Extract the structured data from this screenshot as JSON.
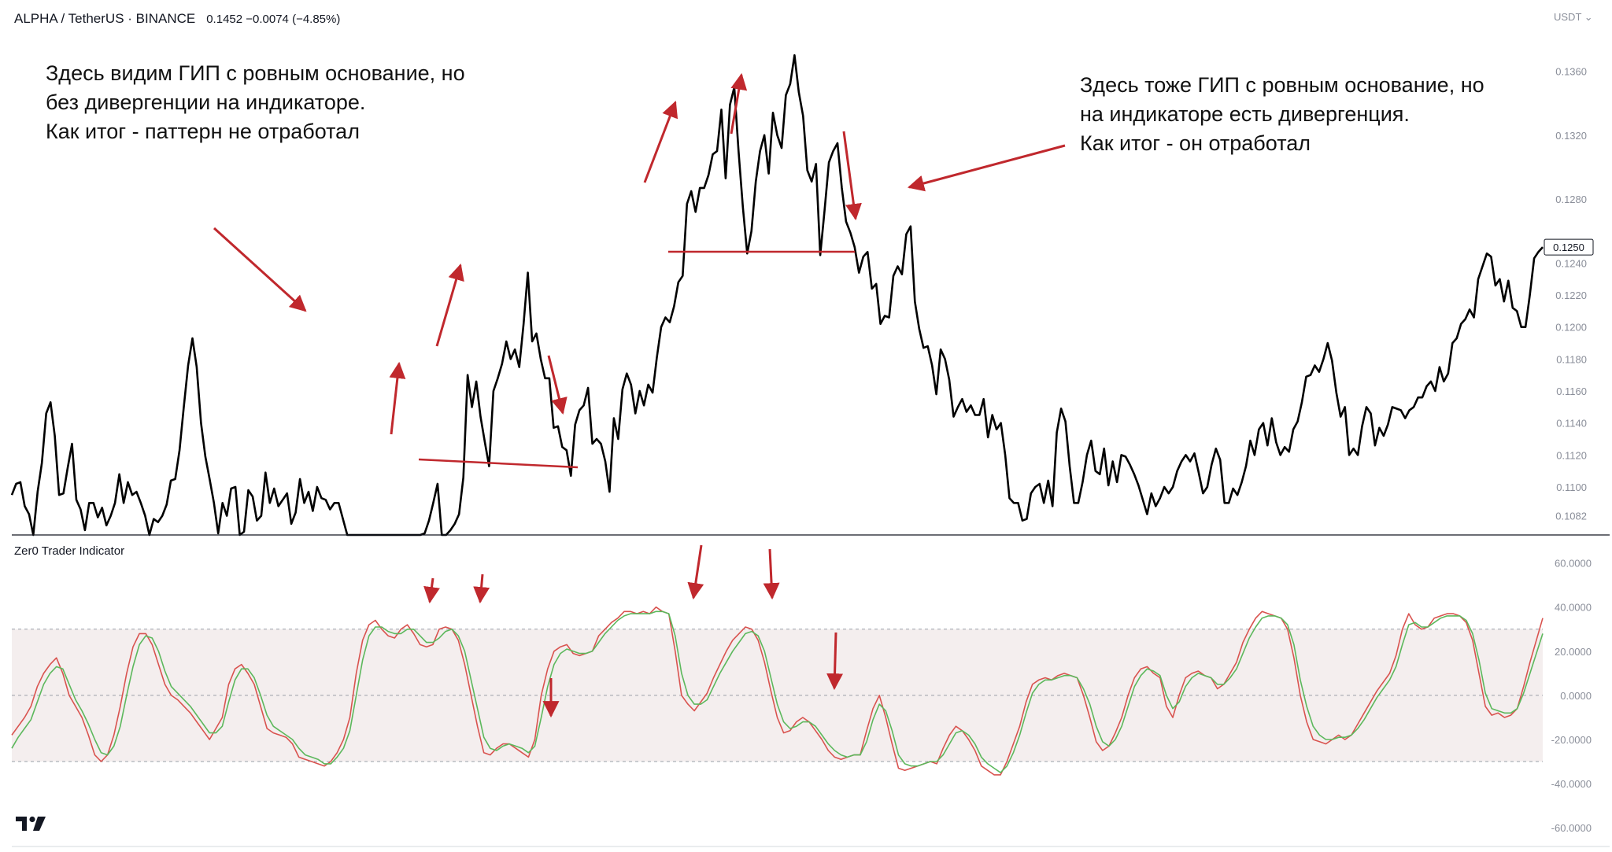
{
  "header": {
    "symbol": "ALPHA / TetherUS · BINANCE",
    "values": "0.1452  −0.0074 (−4.85%)",
    "currency_menu": "USDT ⌄"
  },
  "annotations": {
    "left": [
      "Здесь видим ГИП с ровным основание, но",
      "без дивергенции на индикаторе.",
      "Как итог - паттерн не отработал"
    ],
    "right": [
      "Здесь тоже ГИП с ровным основание, но",
      "на индикаторе есть дивергенция.",
      "Как итог - он отработал"
    ]
  },
  "indicator": {
    "title": "Zer0 Trader Indicator"
  },
  "colors": {
    "price_line": "#000000",
    "signal_red": "#d9534f",
    "signal_green": "#5cb85c",
    "annotation_arrow": "#c0282d",
    "band_fill": "#f4eeee",
    "price_label_box": "#ffffff"
  },
  "chart_data": [
    {
      "type": "line",
      "title": "",
      "xlabel": "",
      "ylabel": "",
      "ylim": [
        0.107,
        0.1375
      ],
      "y_ticks": [
        "0.1360",
        "0.1320",
        "0.1280",
        "0.1240",
        "0.1220",
        "0.1200",
        "0.1180",
        "0.1160",
        "0.1140",
        "0.1120",
        "0.1100",
        "0.1082"
      ],
      "y_tick_values": [
        0.136,
        0.132,
        0.128,
        0.124,
        0.122,
        0.12,
        0.118,
        0.116,
        0.114,
        0.112,
        0.11,
        0.1082
      ],
      "last_price_label": "0.1250",
      "last_price": 0.125,
      "series": [
        {
          "values": [
            0.1095,
            0.1102,
            0.1103,
            0.1088,
            0.1083,
            0.107,
            0.1097,
            0.1115,
            0.1146,
            0.1153,
            0.1132,
            0.1095,
            0.1096,
            0.1112,
            0.1127,
            0.1092,
            0.1086,
            0.1073,
            0.109,
            0.109,
            0.1081,
            0.1087,
            0.1076,
            0.1082,
            0.109,
            0.1108,
            0.109,
            0.1103,
            0.1095,
            0.1097,
            0.109,
            0.1082,
            0.107,
            0.108,
            0.1078,
            0.1082,
            0.1089,
            0.1104,
            0.1105,
            0.1123,
            0.115,
            0.1176,
            0.1193,
            0.1175,
            0.114,
            0.1119,
            0.1105,
            0.109,
            0.1071,
            0.109,
            0.1082,
            0.1099,
            0.11,
            0.107,
            0.1072,
            0.1098,
            0.1094,
            0.1079,
            0.1082,
            0.1109,
            0.109,
            0.1099,
            0.1088,
            0.1092,
            0.1096,
            0.1077,
            0.1084,
            0.1105,
            0.109,
            0.1097,
            0.1085,
            0.11,
            0.1093,
            0.1092,
            0.1086,
            0.109,
            0.109,
            0.108,
            0.107,
            0.107,
            0.107,
            0.107,
            0.107,
            0.107,
            0.107,
            0.107,
            0.107,
            0.107,
            0.107,
            0.107,
            0.107,
            0.107,
            0.107,
            0.107,
            0.107,
            0.107,
            0.1071,
            0.1079,
            0.109,
            0.1102,
            0.107,
            0.107,
            0.1073,
            0.1077,
            0.1083,
            0.1106,
            0.117,
            0.115,
            0.1166,
            0.1144,
            0.1128,
            0.1113,
            0.116,
            0.1168,
            0.1177,
            0.1191,
            0.118,
            0.1186,
            0.1175,
            0.1202,
            0.1234,
            0.1191,
            0.1196,
            0.118,
            0.1168,
            0.1168,
            0.1137,
            0.1138,
            0.1125,
            0.1123,
            0.1107,
            0.1139,
            0.1148,
            0.1151,
            0.1162,
            0.1127,
            0.113,
            0.1127,
            0.1116,
            0.1097,
            0.1143,
            0.113,
            0.1161,
            0.1171,
            0.1164,
            0.1146,
            0.116,
            0.1151,
            0.1164,
            0.1159,
            0.1181,
            0.12,
            0.1206,
            0.1203,
            0.1213,
            0.1228,
            0.1232,
            0.1277,
            0.1285,
            0.1272,
            0.1287,
            0.1287,
            0.1295,
            0.1308,
            0.131,
            0.1336,
            0.1293,
            0.1339,
            0.135,
            0.131,
            0.1275,
            0.1246,
            0.126,
            0.1291,
            0.131,
            0.132,
            0.1296,
            0.1334,
            0.132,
            0.1312,
            0.1345,
            0.1352,
            0.137,
            0.1347,
            0.1332,
            0.1298,
            0.1291,
            0.1302,
            0.1245,
            0.1273,
            0.1303,
            0.131,
            0.1315,
            0.1287,
            0.1266,
            0.1259,
            0.125,
            0.1234,
            0.1244,
            0.1247,
            0.1224,
            0.1227,
            0.1202,
            0.1207,
            0.1206,
            0.1232,
            0.1238,
            0.1233,
            0.1258,
            0.1263,
            0.1216,
            0.1199,
            0.1187,
            0.1188,
            0.1176,
            0.1158,
            0.1186,
            0.118,
            0.1167,
            0.1144,
            0.115,
            0.1155,
            0.1147,
            0.1151,
            0.1145,
            0.1145,
            0.1155,
            0.1131,
            0.1145,
            0.1136,
            0.114,
            0.112,
            0.1093,
            0.109,
            0.109,
            0.1079,
            0.108,
            0.1096,
            0.11,
            0.1102,
            0.109,
            0.1104,
            0.1088,
            0.1134,
            0.1149,
            0.1141,
            0.1113,
            0.109,
            0.109,
            0.1103,
            0.112,
            0.1129,
            0.111,
            0.1108,
            0.1124,
            0.1101,
            0.1116,
            0.1103,
            0.112,
            0.1119,
            0.1114,
            0.1108,
            0.1101,
            0.1092,
            0.1083,
            0.1096,
            0.1088,
            0.1093,
            0.11,
            0.1096,
            0.11,
            0.111,
            0.1116,
            0.112,
            0.1116,
            0.1121,
            0.1109,
            0.1096,
            0.11,
            0.1114,
            0.1124,
            0.1117,
            0.109,
            0.109,
            0.1099,
            0.1095,
            0.1103,
            0.1113,
            0.1129,
            0.112,
            0.1136,
            0.114,
            0.1126,
            0.1143,
            0.1128,
            0.112,
            0.1125,
            0.1122,
            0.1136,
            0.1141,
            0.1153,
            0.1169,
            0.117,
            0.1176,
            0.1172,
            0.118,
            0.119,
            0.1179,
            0.1159,
            0.1144,
            0.115,
            0.112,
            0.1124,
            0.112,
            0.1138,
            0.115,
            0.1146,
            0.1126,
            0.1137,
            0.1132,
            0.1139,
            0.115,
            0.1149,
            0.1148,
            0.1143,
            0.1148,
            0.115,
            0.1156,
            0.1156,
            0.1163,
            0.1166,
            0.116,
            0.1175,
            0.1166,
            0.1171,
            0.119,
            0.1193,
            0.1202,
            0.1205,
            0.1211,
            0.1206,
            0.123,
            0.1238,
            0.1246,
            0.1244,
            0.1226,
            0.123,
            0.1216,
            0.1229,
            0.1212,
            0.121,
            0.12,
            0.12,
            0.122,
            0.1243,
            0.1247,
            0.125
          ]
        }
      ]
    },
    {
      "type": "line",
      "title": "",
      "xlabel": "",
      "ylabel": "",
      "ylim": [
        -61,
        62
      ],
      "y_ticks": [
        "60.0000",
        "40.0000",
        "20.0000",
        "0.0000",
        "-20.0000",
        "-40.0000",
        "-60.0000"
      ],
      "y_tick_values": [
        60,
        40,
        20,
        0,
        -20,
        -40,
        -60
      ],
      "band": [
        -30,
        30
      ],
      "series": [
        {
          "color": "red",
          "values": [
            -18,
            -14,
            -10,
            -5,
            4,
            10,
            14,
            17,
            10,
            0,
            -5,
            -10,
            -18,
            -27,
            -30,
            -27,
            -18,
            -5,
            10,
            22,
            28,
            28,
            23,
            14,
            5,
            0,
            -2,
            -5,
            -8,
            -12,
            -16,
            -20,
            -15,
            -10,
            5,
            12,
            14,
            10,
            5,
            -5,
            -15,
            -17,
            -18,
            -19,
            -22,
            -28,
            -29,
            -30,
            -31,
            -32,
            -30,
            -26,
            -20,
            -10,
            10,
            25,
            32,
            34,
            30,
            27,
            26,
            30,
            32,
            28,
            23,
            22,
            23,
            30,
            31,
            30,
            25,
            14,
            0,
            -14,
            -26,
            -27,
            -24,
            -22,
            -22,
            -24,
            -26,
            -28,
            -20,
            0,
            12,
            20,
            22,
            23,
            19,
            18,
            19,
            20,
            27,
            30,
            33,
            35,
            38,
            38,
            37,
            38,
            37,
            40,
            38,
            37,
            20,
            0,
            -4,
            -7,
            -3,
            1,
            8,
            14,
            20,
            25,
            28,
            31,
            30,
            25,
            15,
            2,
            -10,
            -17,
            -16,
            -12,
            -10,
            -12,
            -16,
            -20,
            -25,
            -28,
            -29,
            -28,
            -27,
            -27,
            -16,
            -6,
            0,
            -10,
            -22,
            -33,
            -34,
            -33,
            -32,
            -31,
            -30,
            -31,
            -24,
            -18,
            -14,
            -16,
            -20,
            -25,
            -32,
            -34,
            -36,
            -36,
            -30,
            -22,
            -14,
            -3,
            5,
            7,
            8,
            7,
            9,
            10,
            9,
            8,
            0,
            -10,
            -21,
            -25,
            -23,
            -17,
            -10,
            0,
            8,
            12,
            13,
            10,
            8,
            -5,
            -10,
            0,
            8,
            10,
            11,
            9,
            8,
            3,
            5,
            10,
            15,
            24,
            30,
            35,
            38,
            37,
            36,
            35,
            30,
            17,
            0,
            -12,
            -20,
            -21,
            -22,
            -20,
            -18,
            -20,
            -18,
            -13,
            -8,
            -3,
            2,
            6,
            10,
            18,
            30,
            37,
            32,
            30,
            31,
            35,
            36,
            37,
            37,
            36,
            33,
            25,
            10,
            -5,
            -9,
            -8,
            -10,
            -9,
            -6,
            4,
            15,
            25,
            35
          ]
        },
        {
          "color": "green",
          "values": [
            -24,
            -19,
            -15,
            -11,
            -3,
            5,
            10,
            13,
            12,
            5,
            -2,
            -7,
            -13,
            -20,
            -26,
            -27,
            -23,
            -14,
            0,
            13,
            23,
            27,
            26,
            20,
            11,
            4,
            1,
            -2,
            -5,
            -9,
            -13,
            -17,
            -17,
            -14,
            -3,
            7,
            12,
            12,
            8,
            0,
            -9,
            -14,
            -16,
            -18,
            -20,
            -24,
            -27,
            -28,
            -29,
            -31,
            -31,
            -28,
            -24,
            -16,
            0,
            16,
            27,
            31,
            31,
            29,
            28,
            28,
            30,
            30,
            27,
            24,
            24,
            26,
            29,
            30,
            27,
            20,
            7,
            -6,
            -19,
            -24,
            -25,
            -23,
            -22,
            -23,
            -24,
            -26,
            -23,
            -10,
            4,
            14,
            19,
            21,
            20,
            19,
            19,
            20,
            24,
            28,
            31,
            34,
            36,
            37,
            37,
            37,
            37,
            38,
            38,
            37,
            27,
            10,
            0,
            -4,
            -4,
            -2,
            4,
            10,
            15,
            20,
            24,
            28,
            29,
            27,
            20,
            8,
            -4,
            -12,
            -15,
            -14,
            -12,
            -12,
            -14,
            -18,
            -22,
            -25,
            -27,
            -28,
            -27,
            -27,
            -21,
            -11,
            -4,
            -7,
            -16,
            -27,
            -31,
            -32,
            -32,
            -31,
            -30,
            -30,
            -27,
            -22,
            -17,
            -16,
            -18,
            -22,
            -28,
            -31,
            -33,
            -35,
            -32,
            -26,
            -18,
            -8,
            1,
            5,
            7,
            7,
            8,
            9,
            9,
            8,
            3,
            -4,
            -14,
            -21,
            -23,
            -20,
            -14,
            -5,
            4,
            9,
            12,
            11,
            9,
            0,
            -6,
            -3,
            4,
            8,
            10,
            9,
            8,
            5,
            5,
            8,
            12,
            19,
            26,
            31,
            35,
            36,
            36,
            35,
            32,
            23,
            7,
            -5,
            -14,
            -18,
            -20,
            -20,
            -19,
            -19,
            -18,
            -15,
            -11,
            -6,
            -1,
            3,
            7,
            13,
            23,
            32,
            33,
            31,
            31,
            33,
            35,
            36,
            36,
            36,
            34,
            28,
            16,
            1,
            -6,
            -7,
            -8,
            -8,
            -6,
            1,
            10,
            19,
            28
          ]
        }
      ]
    }
  ]
}
